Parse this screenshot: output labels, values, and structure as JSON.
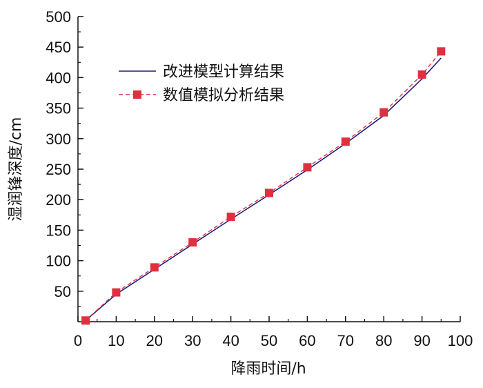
{
  "chart_data": {
    "type": "line",
    "xlabel": "降雨时间/h",
    "ylabel": "湿润锋深度/cm",
    "xlim": [
      0,
      100
    ],
    "ylim": [
      0,
      500
    ],
    "x_ticks": [
      0,
      10,
      20,
      30,
      40,
      50,
      60,
      70,
      80,
      90,
      100
    ],
    "y_ticks": [
      50,
      100,
      150,
      200,
      250,
      300,
      350,
      400,
      450,
      500
    ],
    "grid": false,
    "legend_position": "top-center",
    "series": [
      {
        "name": "改进模型计算结果",
        "style": "solid",
        "color": "#1f1f7a",
        "x": [
          2,
          10,
          20,
          30,
          40,
          50,
          60,
          70,
          80,
          90,
          95
        ],
        "y": [
          2,
          45,
          86,
          127,
          168,
          208,
          249,
          292,
          338,
          398,
          432
        ]
      },
      {
        "name": "数值模拟分析结果",
        "style": "dashed",
        "color": "#e03040",
        "marker": "square",
        "x": [
          2,
          10,
          20,
          30,
          40,
          50,
          60,
          70,
          80,
          90,
          95
        ],
        "y": [
          2,
          48,
          89,
          130,
          172,
          211,
          253,
          295,
          343,
          405,
          443
        ]
      }
    ]
  }
}
